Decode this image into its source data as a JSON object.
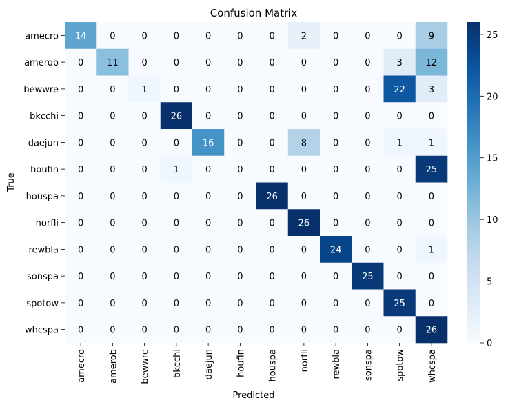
{
  "chart_data": {
    "type": "heatmap",
    "title": "Confusion Matrix",
    "xlabel": "Predicted",
    "ylabel": "True",
    "x_categories": [
      "amecro",
      "amerob",
      "bewwre",
      "bkcchi",
      "daejun",
      "houfin",
      "houspa",
      "norfli",
      "rewbla",
      "sonspa",
      "spotow",
      "whcspa"
    ],
    "y_categories": [
      "amecro",
      "amerob",
      "bewwre",
      "bkcchi",
      "daejun",
      "houfin",
      "houspa",
      "norfli",
      "rewbla",
      "sonspa",
      "spotow",
      "whcspa"
    ],
    "values": [
      [
        14,
        0,
        0,
        0,
        0,
        0,
        0,
        2,
        0,
        0,
        0,
        9
      ],
      [
        0,
        11,
        0,
        0,
        0,
        0,
        0,
        0,
        0,
        0,
        3,
        12
      ],
      [
        0,
        0,
        1,
        0,
        0,
        0,
        0,
        0,
        0,
        0,
        22,
        3
      ],
      [
        0,
        0,
        0,
        26,
        0,
        0,
        0,
        0,
        0,
        0,
        0,
        0
      ],
      [
        0,
        0,
        0,
        0,
        16,
        0,
        0,
        8,
        0,
        0,
        1,
        1
      ],
      [
        0,
        0,
        0,
        1,
        0,
        0,
        0,
        0,
        0,
        0,
        0,
        25
      ],
      [
        0,
        0,
        0,
        0,
        0,
        0,
        26,
        0,
        0,
        0,
        0,
        0
      ],
      [
        0,
        0,
        0,
        0,
        0,
        0,
        0,
        26,
        0,
        0,
        0,
        0
      ],
      [
        0,
        0,
        0,
        0,
        0,
        0,
        0,
        0,
        24,
        0,
        0,
        1
      ],
      [
        0,
        0,
        0,
        0,
        0,
        0,
        0,
        0,
        0,
        25,
        0,
        0
      ],
      [
        0,
        0,
        0,
        0,
        0,
        0,
        0,
        0,
        0,
        0,
        25,
        0
      ],
      [
        0,
        0,
        0,
        0,
        0,
        0,
        0,
        0,
        0,
        0,
        0,
        26
      ]
    ],
    "colorbar": {
      "colormap": "Blues",
      "range": [
        0,
        26
      ],
      "ticks": [
        0,
        5,
        10,
        15,
        20,
        25
      ]
    }
  }
}
